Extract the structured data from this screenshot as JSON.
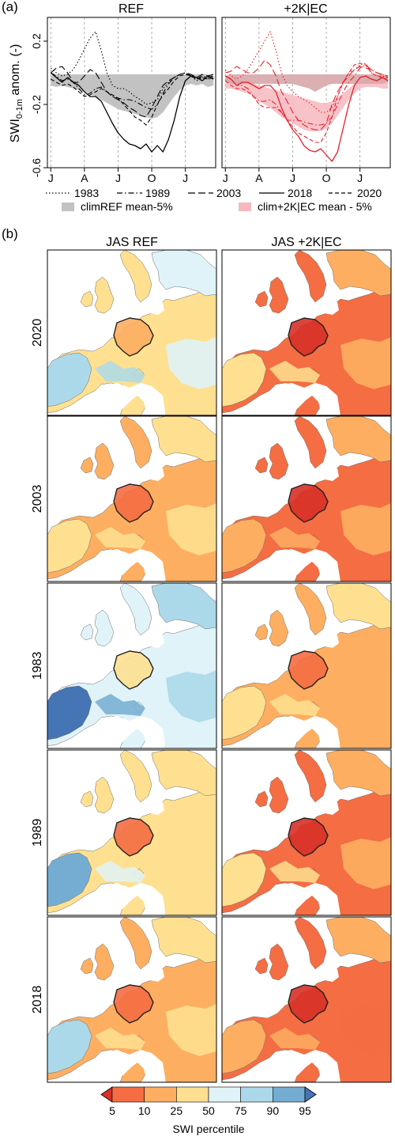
{
  "panel_labels": {
    "a": "(a)",
    "b": "(b)"
  },
  "ylabel": {
    "main": "SWI",
    "sub": "0-1m",
    "rest": " anom. (-)"
  },
  "colors": {
    "ref_line": "#000000",
    "ec_line": "#e8202a",
    "ref_band": "#c2c2c2",
    "ec_band": "#f6b9bf",
    "ec_band_overlap": "#d8a6aa",
    "map_border": "#222222"
  },
  "legend": {
    "years": [
      {
        "label": "1983",
        "style": "dotted"
      },
      {
        "label": "1989",
        "style": "dashdot"
      },
      {
        "label": "2003",
        "style": "longdash"
      },
      {
        "label": "2018",
        "style": "solid"
      },
      {
        "label": "2020",
        "style": "dashed"
      }
    ],
    "bands": [
      {
        "label": "climREF mean-5%",
        "color": "#c2c2c2"
      },
      {
        "label": "clim+2K|EC mean - 5%",
        "color": "#f6b9bf"
      }
    ]
  },
  "chart_data": [
    {
      "type": "line",
      "title": "REF",
      "ylabel": "SWI0-1m anom. (-)",
      "ylim": [
        -0.6,
        0.35
      ],
      "yticks": [
        0.2,
        -0.2,
        -0.6
      ],
      "ytick_labels": [
        "0.2",
        "-0.2",
        "-0.6"
      ],
      "xticks": [
        0,
        3,
        6,
        9,
        12
      ],
      "xtick_labels": [
        "J",
        "A",
        "J",
        "O",
        "J"
      ],
      "xlim": [
        -0.3,
        14.7
      ],
      "grid": "vertical dashed",
      "x": [
        0,
        0.5,
        1,
        1.5,
        2,
        2.5,
        3,
        3.5,
        4,
        4.5,
        5,
        5.5,
        6,
        6.5,
        7,
        7.5,
        8,
        8.5,
        9,
        9.5,
        10,
        10.5,
        11,
        11.5,
        12,
        12.5,
        13,
        13.5,
        14,
        14.5
      ],
      "band": {
        "name": "climREF mean-5%",
        "upper": [
          -0.02,
          -0.01,
          -0.01,
          -0.01,
          -0.01,
          -0.01,
          -0.01,
          -0.01,
          -0.01,
          -0.01,
          -0.01,
          -0.01,
          -0.01,
          -0.01,
          -0.01,
          -0.01,
          -0.01,
          -0.01,
          -0.01,
          -0.01,
          -0.01,
          -0.01,
          -0.01,
          -0.01,
          -0.01,
          -0.01,
          -0.01,
          -0.01,
          -0.01,
          -0.02
        ],
        "lower": [
          -0.08,
          -0.09,
          -0.08,
          -0.09,
          -0.1,
          -0.11,
          -0.12,
          -0.13,
          -0.15,
          -0.17,
          -0.19,
          -0.21,
          -0.23,
          -0.24,
          -0.25,
          -0.26,
          -0.27,
          -0.28,
          -0.29,
          -0.28,
          -0.25,
          -0.2,
          -0.15,
          -0.11,
          -0.08,
          -0.07,
          -0.08,
          -0.07,
          -0.09,
          -0.08
        ]
      },
      "series": [
        {
          "name": "1983",
          "style": "dotted",
          "values": [
            0.03,
            0.0,
            -0.02,
            -0.01,
            0.02,
            0.08,
            0.15,
            0.22,
            0.26,
            0.14,
            0.0,
            -0.08,
            -0.1,
            -0.1,
            -0.12,
            -0.15,
            -0.17,
            -0.2,
            -0.19,
            -0.17,
            -0.1,
            -0.06,
            -0.03,
            -0.01,
            0.0,
            -0.02,
            -0.05,
            -0.03,
            -0.04,
            -0.03
          ]
        },
        {
          "name": "1989",
          "style": "dashdot",
          "values": [
            0.0,
            -0.02,
            -0.05,
            -0.04,
            -0.06,
            -0.1,
            -0.14,
            -0.13,
            -0.1,
            -0.09,
            -0.12,
            -0.15,
            -0.16,
            -0.17,
            -0.17,
            -0.18,
            -0.2,
            -0.22,
            -0.23,
            -0.2,
            -0.13,
            -0.07,
            -0.03,
            -0.01,
            0.0,
            -0.02,
            -0.04,
            -0.02,
            -0.03,
            -0.02
          ]
        },
        {
          "name": "2003",
          "style": "longdash",
          "values": [
            0.0,
            0.03,
            0.04,
            0.0,
            -0.06,
            -0.06,
            -0.02,
            0.02,
            0.0,
            -0.06,
            -0.12,
            -0.15,
            -0.17,
            -0.19,
            -0.22,
            -0.24,
            -0.27,
            -0.28,
            -0.22,
            -0.15,
            -0.08,
            -0.05,
            -0.03,
            -0.01,
            0.0,
            -0.01,
            -0.03,
            -0.01,
            -0.02,
            -0.01
          ]
        },
        {
          "name": "2018",
          "style": "solid",
          "values": [
            0.0,
            -0.03,
            -0.06,
            -0.03,
            -0.06,
            -0.08,
            -0.12,
            -0.15,
            -0.15,
            -0.18,
            -0.25,
            -0.32,
            -0.38,
            -0.42,
            -0.45,
            -0.46,
            -0.48,
            -0.45,
            -0.5,
            -0.46,
            -0.5,
            -0.42,
            -0.3,
            -0.15,
            -0.05,
            -0.02,
            -0.03,
            -0.05,
            -0.02,
            -0.04
          ]
        },
        {
          "name": "2020",
          "style": "dashed",
          "values": [
            -0.04,
            -0.06,
            -0.08,
            -0.07,
            -0.09,
            -0.12,
            -0.15,
            -0.14,
            -0.12,
            -0.1,
            -0.12,
            -0.14,
            -0.16,
            -0.2,
            -0.24,
            -0.28,
            -0.3,
            -0.33,
            -0.28,
            -0.2,
            -0.14,
            -0.1,
            -0.05,
            -0.02,
            -0.01,
            -0.02,
            -0.04,
            -0.03,
            -0.04,
            -0.03
          ]
        }
      ]
    },
    {
      "type": "line",
      "title": "+2K|EC",
      "ylim": [
        -0.6,
        0.35
      ],
      "yticks": [
        0.2,
        -0.2,
        -0.6
      ],
      "xticks": [
        0,
        3,
        6,
        9,
        12
      ],
      "xtick_labels": [
        "J",
        "A",
        "J",
        "O",
        "J"
      ],
      "xlim": [
        -0.3,
        14.7
      ],
      "grid": "vertical dashed",
      "x": [
        0,
        0.5,
        1,
        1.5,
        2,
        2.5,
        3,
        3.5,
        4,
        4.5,
        5,
        5.5,
        6,
        6.5,
        7,
        7.5,
        8,
        8.5,
        9,
        9.5,
        10,
        10.5,
        11,
        11.5,
        12,
        12.5,
        13,
        13.5,
        14,
        14.5
      ],
      "band": {
        "name": "clim+2K|EC mean - 5%",
        "upper": [
          -0.04,
          -0.04,
          -0.05,
          -0.05,
          -0.06,
          -0.07,
          -0.08,
          -0.09,
          -0.1,
          -0.11,
          -0.12,
          -0.13,
          -0.14,
          -0.15,
          -0.16,
          -0.17,
          -0.18,
          -0.19,
          -0.19,
          -0.18,
          -0.16,
          -0.13,
          -0.1,
          -0.07,
          -0.05,
          -0.04,
          -0.04,
          -0.04,
          -0.04,
          -0.04
        ],
        "lower": [
          -0.1,
          -0.1,
          -0.11,
          -0.12,
          -0.13,
          -0.15,
          -0.18,
          -0.2,
          -0.22,
          -0.25,
          -0.28,
          -0.3,
          -0.32,
          -0.34,
          -0.36,
          -0.37,
          -0.37,
          -0.37,
          -0.35,
          -0.32,
          -0.27,
          -0.22,
          -0.17,
          -0.13,
          -0.1,
          -0.09,
          -0.09,
          -0.09,
          -0.1,
          -0.1
        ]
      },
      "ref_band": {
        "upper": [
          -0.02,
          -0.01,
          -0.01,
          -0.01,
          -0.01,
          -0.01,
          -0.01,
          -0.01,
          -0.01,
          -0.01,
          -0.01,
          -0.01,
          -0.01,
          -0.01,
          -0.01,
          -0.01,
          -0.01,
          -0.01,
          -0.01,
          -0.01,
          -0.01,
          -0.01,
          -0.01,
          -0.01,
          -0.01,
          -0.01,
          -0.01,
          -0.01,
          -0.01,
          -0.02
        ],
        "lower": [
          -0.06,
          -0.07,
          -0.07,
          -0.07,
          -0.07,
          -0.07,
          -0.07,
          -0.07,
          -0.07,
          -0.07,
          -0.07,
          -0.07,
          -0.07,
          -0.08,
          -0.09,
          -0.1,
          -0.12,
          -0.1,
          -0.08,
          -0.07,
          -0.07,
          -0.07,
          -0.07,
          -0.07,
          -0.07,
          -0.07,
          -0.07,
          -0.07,
          -0.07,
          -0.06
        ]
      },
      "series": [
        {
          "name": "1983",
          "style": "dotted",
          "values": [
            0.02,
            -0.02,
            -0.04,
            -0.02,
            0.02,
            0.08,
            0.14,
            0.2,
            0.26,
            0.14,
            0.0,
            -0.08,
            -0.12,
            -0.15,
            -0.17,
            -0.19,
            -0.22,
            -0.25,
            -0.25,
            -0.22,
            -0.15,
            -0.06,
            0.0,
            0.02,
            0.05,
            0.06,
            0.0,
            -0.02,
            -0.02,
            -0.04
          ]
        },
        {
          "name": "1989",
          "style": "dashdot",
          "values": [
            -0.02,
            -0.04,
            -0.08,
            -0.08,
            -0.1,
            -0.15,
            -0.18,
            -0.18,
            -0.17,
            -0.2,
            -0.25,
            -0.3,
            -0.3,
            -0.3,
            -0.31,
            -0.32,
            -0.33,
            -0.33,
            -0.32,
            -0.28,
            -0.2,
            -0.12,
            -0.06,
            -0.02,
            0.03,
            0.05,
            0.02,
            0.0,
            -0.01,
            -0.03
          ]
        },
        {
          "name": "2003",
          "style": "longdash",
          "values": [
            0.0,
            0.01,
            0.04,
            0.02,
            0.0,
            0.0,
            0.03,
            0.08,
            0.05,
            -0.02,
            -0.12,
            -0.18,
            -0.25,
            -0.3,
            -0.33,
            -0.35,
            -0.36,
            -0.36,
            -0.32,
            -0.2,
            -0.12,
            -0.06,
            -0.02,
            0.02,
            0.04,
            0.03,
            0.02,
            0.0,
            -0.01,
            -0.02
          ]
        },
        {
          "name": "2018",
          "style": "solid",
          "values": [
            -0.02,
            -0.04,
            -0.08,
            -0.06,
            -0.06,
            -0.08,
            -0.1,
            -0.08,
            -0.08,
            -0.12,
            -0.22,
            -0.3,
            -0.36,
            -0.4,
            -0.46,
            -0.49,
            -0.5,
            -0.48,
            -0.52,
            -0.56,
            -0.5,
            -0.35,
            -0.2,
            -0.08,
            -0.03,
            -0.02,
            -0.04,
            -0.05,
            -0.03,
            -0.05
          ]
        },
        {
          "name": "2020",
          "style": "dashed",
          "values": [
            -0.05,
            -0.08,
            -0.1,
            -0.1,
            -0.12,
            -0.15,
            -0.2,
            -0.22,
            -0.22,
            -0.22,
            -0.25,
            -0.3,
            -0.34,
            -0.38,
            -0.4,
            -0.42,
            -0.44,
            -0.44,
            -0.38,
            -0.28,
            -0.15,
            -0.06,
            0.0,
            0.05,
            0.06,
            0.05,
            0.0,
            -0.02,
            -0.03,
            -0.05
          ]
        }
      ]
    }
  ],
  "maps": {
    "col_titles": [
      "JAS REF",
      "JAS +2K|EC"
    ],
    "row_labels": [
      "2020",
      "2003",
      "1983",
      "1989",
      "2018"
    ],
    "dryness_ref": [
      0.55,
      0.68,
      0.4,
      0.62,
      0.7
    ],
    "dryness_ec": [
      0.75,
      0.82,
      0.72,
      0.8,
      0.83
    ]
  },
  "colorbar": {
    "tick_labels": [
      "5",
      "10",
      "25",
      "50",
      "75",
      "90",
      "95"
    ],
    "colors": [
      "#d73027",
      "#f46d43",
      "#fdae61",
      "#fee090",
      "#e0f3f8",
      "#abd9e9",
      "#74add1",
      "#4575b4"
    ],
    "label": "SWI percentile"
  }
}
